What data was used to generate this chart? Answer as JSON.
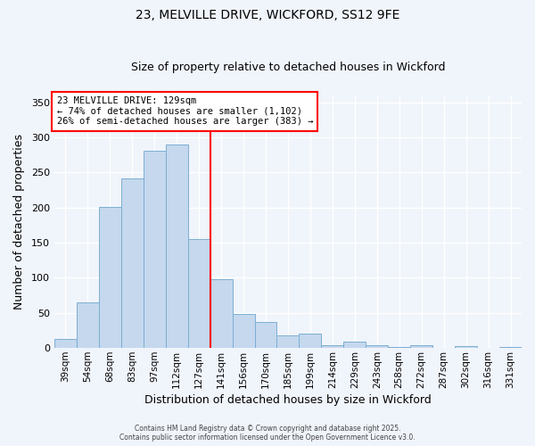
{
  "title": "23, MELVILLE DRIVE, WICKFORD, SS12 9FE",
  "subtitle": "Size of property relative to detached houses in Wickford",
  "xlabel": "Distribution of detached houses by size in Wickford",
  "ylabel": "Number of detached properties",
  "bar_labels": [
    "39sqm",
    "54sqm",
    "68sqm",
    "83sqm",
    "97sqm",
    "112sqm",
    "127sqm",
    "141sqm",
    "156sqm",
    "170sqm",
    "185sqm",
    "199sqm",
    "214sqm",
    "229sqm",
    "243sqm",
    "258sqm",
    "272sqm",
    "287sqm",
    "302sqm",
    "316sqm",
    "331sqm"
  ],
  "bar_values": [
    13,
    65,
    201,
    242,
    281,
    290,
    155,
    98,
    49,
    37,
    18,
    20,
    4,
    9,
    4,
    2,
    4,
    0,
    3,
    0,
    1
  ],
  "bar_color": "#c5d8ed",
  "bar_edge_color": "#7bafd4",
  "ylim": [
    0,
    360
  ],
  "yticks": [
    0,
    50,
    100,
    150,
    200,
    250,
    300,
    350
  ],
  "property_line_index": 6,
  "property_line_color": "red",
  "annotation_title": "23 MELVILLE DRIVE: 129sqm",
  "annotation_line1": "← 74% of detached houses are smaller (1,102)",
  "annotation_line2": "26% of semi-detached houses are larger (383) →",
  "footer_line1": "Contains HM Land Registry data © Crown copyright and database right 2025.",
  "footer_line2": "Contains public sector information licensed under the Open Government Licence v3.0.",
  "background_color": "#f0f4fb",
  "grid_color": "white",
  "title_fontsize": 10,
  "subtitle_fontsize": 9,
  "axis_label_fontsize": 9,
  "tick_fontsize": 7.5
}
